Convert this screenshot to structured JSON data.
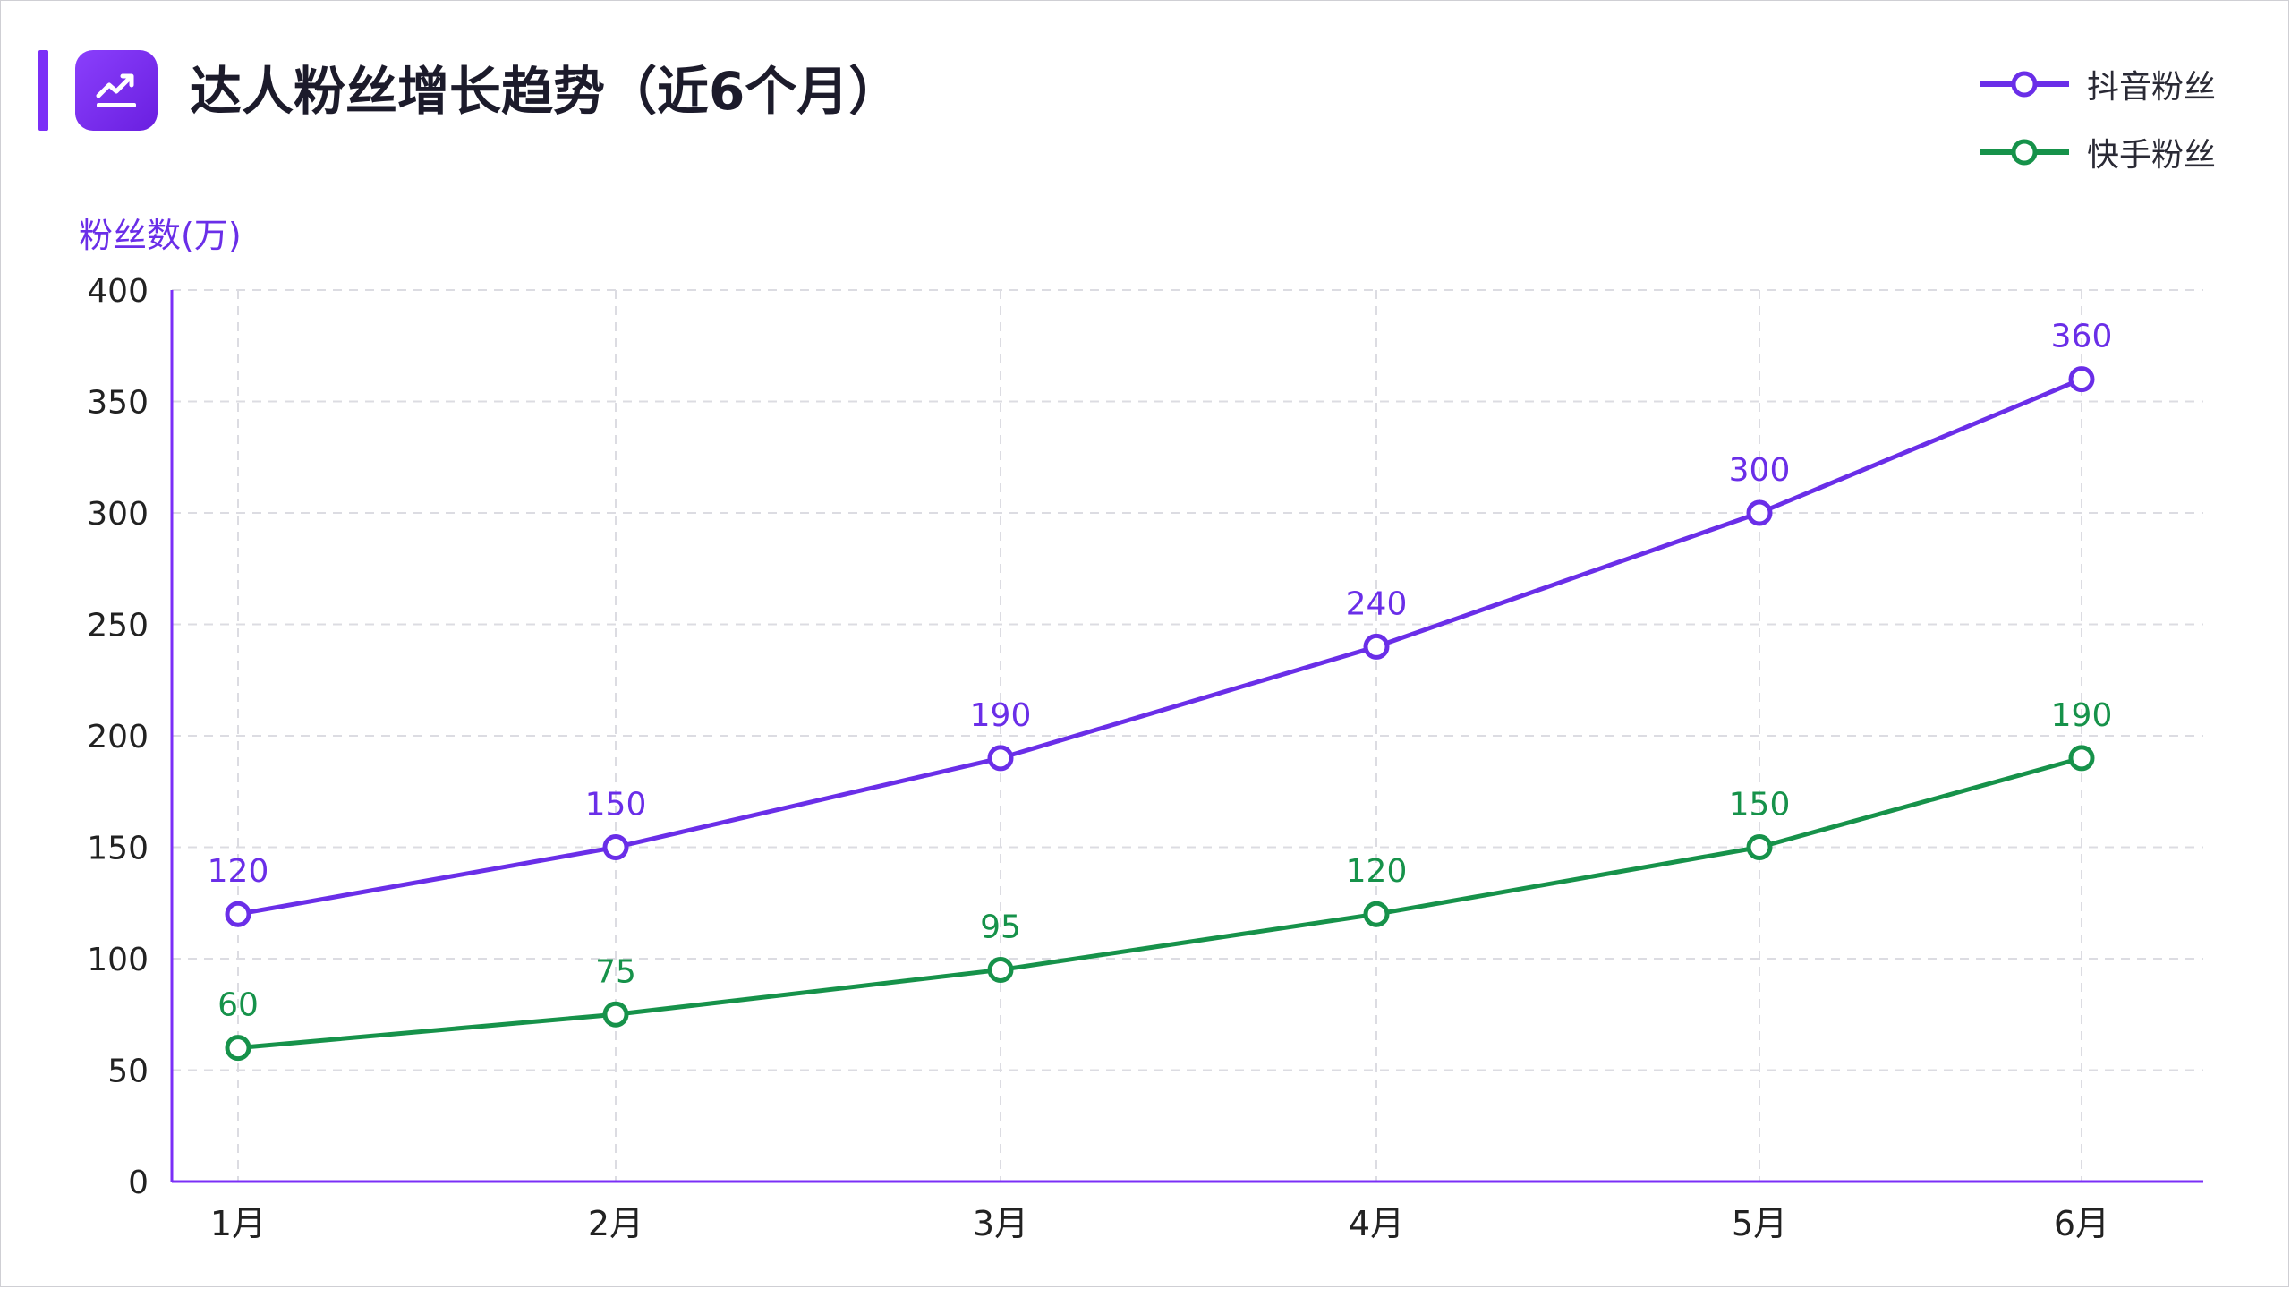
{
  "header": {
    "title": "达人粉丝增长趋势（近6个月）",
    "icon": "trend-up-icon"
  },
  "legend": {
    "items": [
      {
        "label": "抖音粉丝",
        "color": "#6a2ee8"
      },
      {
        "label": "快手粉丝",
        "color": "#16924a"
      }
    ],
    "placement": "top-right"
  },
  "colors": {
    "accent": "#7b2ff7",
    "douyin": "#6a2ee8",
    "kuaishou": "#16924a",
    "axis": "#7b2ff7",
    "grid": "#dcdce2"
  },
  "chart_data": {
    "type": "line",
    "title": "达人粉丝增长趋势（近6个月）",
    "xlabel": "",
    "ylabel": "粉丝数(万)",
    "ylim": [
      0,
      400
    ],
    "yticks": [
      0,
      50,
      100,
      150,
      200,
      250,
      300,
      350,
      400
    ],
    "categories": [
      "1月",
      "2月",
      "3月",
      "4月",
      "5月",
      "6月"
    ],
    "grid": true,
    "series": [
      {
        "name": "抖音粉丝",
        "values": [
          120,
          150,
          190,
          240,
          300,
          360
        ]
      },
      {
        "name": "快手粉丝",
        "values": [
          60,
          75,
          95,
          120,
          150,
          190
        ]
      }
    ]
  }
}
